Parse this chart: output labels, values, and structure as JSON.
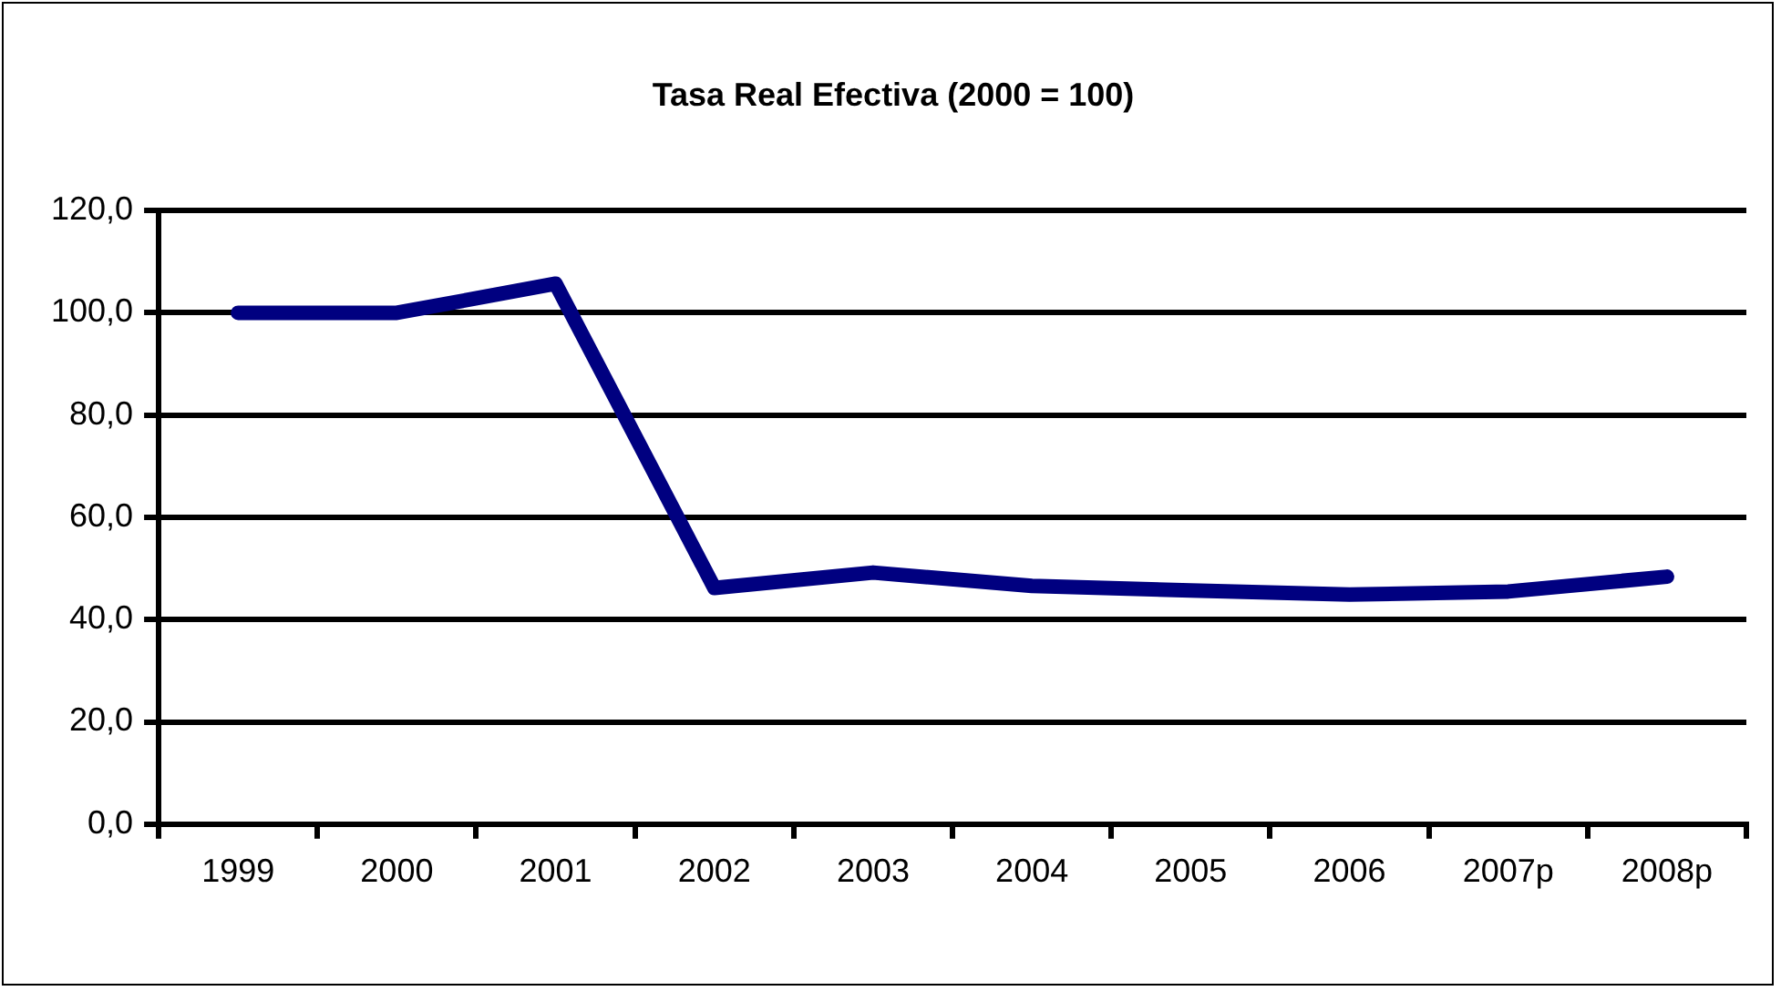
{
  "chart_data": {
    "type": "line",
    "title": "Tasa Real Efectiva (2000 = 100)",
    "categories": [
      "1999",
      "2000",
      "2001",
      "2002",
      "2003",
      "2004",
      "2005",
      "2006",
      "2007p",
      "2008p"
    ],
    "series": [
      {
        "color": "#000080",
        "values": [
          100,
          100,
          105.7,
          46.2,
          49.2,
          46.6,
          45.7,
          44.9,
          45.5,
          48.4
        ]
      }
    ],
    "ylim": [
      0,
      120
    ],
    "yticks": [
      {
        "value": 0,
        "label": "0,0"
      },
      {
        "value": 20,
        "label": "20,0"
      },
      {
        "value": 40,
        "label": "40,0"
      },
      {
        "value": 60,
        "label": "60,0"
      },
      {
        "value": 80,
        "label": "80,0"
      },
      {
        "value": 100,
        "label": "100,0"
      },
      {
        "value": 120,
        "label": "120,0"
      }
    ],
    "grid": "y",
    "legend": false,
    "marker": "none",
    "line_style": "solid"
  }
}
